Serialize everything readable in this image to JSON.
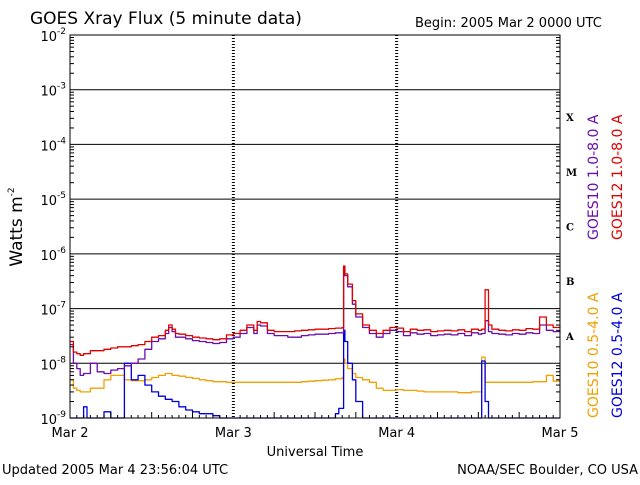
{
  "chart_data": {
    "type": "line",
    "title": "GOES Xray Flux (5 minute data)",
    "begin_label": "Begin:  2005 Mar 2 0000 UTC",
    "xlabel": "Universal Time",
    "ylabel": "Watts m",
    "ylabel_sup": "-2",
    "y_scale": "log",
    "ylim": [
      1e-09,
      0.01
    ],
    "y_ticks": [
      {
        "base": "10",
        "exp": "-2"
      },
      {
        "base": "10",
        "exp": "-3"
      },
      {
        "base": "10",
        "exp": "-4"
      },
      {
        "base": "10",
        "exp": "-5"
      },
      {
        "base": "10",
        "exp": "-6"
      },
      {
        "base": "10",
        "exp": "-7"
      },
      {
        "base": "10",
        "exp": "-8"
      },
      {
        "base": "10",
        "exp": "-9"
      }
    ],
    "x_ticks": [
      "Mar 2",
      "Mar 3",
      "Mar 4",
      "Mar 5"
    ],
    "xlim": [
      0,
      72
    ],
    "x_unit": "hours since 2005 Mar 2 0000 UTC",
    "flare_classes": [
      {
        "label": "X",
        "flux": 0.0001
      },
      {
        "label": "M",
        "flux": 1e-05
      },
      {
        "label": "C",
        "flux": 1e-06
      },
      {
        "label": "B",
        "flux": 1e-07
      },
      {
        "label": "A",
        "flux": 1e-08
      }
    ],
    "grid": true,
    "series": [
      {
        "name": "GOES10 1.0-8.0 A",
        "color": "#6a0dad",
        "x": [
          0,
          0.5,
          1,
          1.5,
          2,
          3,
          4,
          5,
          6,
          7,
          8,
          9,
          10,
          11,
          12,
          13,
          14,
          14.5,
          15,
          15.5,
          16,
          17,
          18,
          19,
          20,
          21,
          22,
          23,
          24,
          25,
          26,
          27,
          27.5,
          28,
          29,
          30,
          31,
          32,
          33,
          34,
          35,
          36,
          37,
          38,
          39,
          40,
          40.2,
          40.4,
          40.8,
          41.5,
          42,
          43,
          44,
          45,
          46,
          47,
          48,
          49,
          50,
          51,
          52,
          53,
          54,
          55,
          56,
          57,
          58,
          59,
          60,
          60.5,
          61,
          61.5,
          62,
          63,
          64,
          65,
          66,
          67,
          68,
          69,
          70,
          71,
          72
        ],
        "values": [
          2.2e-08,
          1e-08,
          8e-09,
          6e-09,
          6.5e-09,
          1e-08,
          7e-09,
          6.5e-09,
          7.5e-09,
          8e-09,
          9e-09,
          1e-08,
          1.2e-08,
          1.8e-08,
          2.5e-08,
          2.8e-08,
          3.5e-08,
          4.5e-08,
          3.8e-08,
          3e-08,
          3e-08,
          2.8e-08,
          2.6e-08,
          2.5e-08,
          2.4e-08,
          2.3e-08,
          2.4e-08,
          2.8e-08,
          3e-08,
          3.5e-08,
          4.5e-08,
          3.5e-08,
          5e-08,
          4.8e-08,
          3.5e-08,
          3.2e-08,
          3.2e-08,
          3e-08,
          3e-08,
          3.2e-08,
          3.3e-08,
          3.4e-08,
          3.4e-08,
          3.5e-08,
          3.6e-08,
          3.6e-08,
          5.5e-07,
          4e-07,
          2.5e-07,
          1.2e-07,
          7e-08,
          4.5e-08,
          3.5e-08,
          3e-08,
          3.5e-08,
          4e-08,
          3.8e-08,
          3.2e-08,
          3.6e-08,
          3.4e-08,
          3.5e-08,
          3.2e-08,
          3.3e-08,
          3.4e-08,
          3.3e-08,
          3.5e-08,
          3.2e-08,
          3.6e-08,
          3.4e-08,
          3.5e-08,
          6e-08,
          3.8e-08,
          3.5e-08,
          3.4e-08,
          3.3e-08,
          3.5e-08,
          3.4e-08,
          3.6e-08,
          3.5e-08,
          5e-08,
          4e-08,
          3.8e-08,
          3.9e-08
        ]
      },
      {
        "name": "GOES12 1.0-8.0 A",
        "color": "#e00000",
        "x": [
          0,
          0.5,
          1,
          1.5,
          2,
          3,
          4,
          5,
          6,
          7,
          8,
          9,
          10,
          11,
          12,
          13,
          14,
          14.5,
          15,
          15.5,
          16,
          17,
          18,
          19,
          20,
          21,
          22,
          23,
          24,
          25,
          26,
          27,
          27.5,
          28,
          29,
          30,
          31,
          32,
          33,
          34,
          35,
          36,
          37,
          38,
          39,
          40,
          40.2,
          40.4,
          40.8,
          41.5,
          42,
          43,
          44,
          45,
          46,
          47,
          48,
          49,
          50,
          51,
          52,
          53,
          54,
          55,
          56,
          57,
          58,
          59,
          60,
          60.5,
          61,
          61.5,
          62,
          63,
          64,
          65,
          66,
          67,
          68,
          69,
          70,
          71,
          72
        ],
        "values": [
          2.5e-08,
          1.6e-08,
          1.5e-08,
          1.4e-08,
          1.5e-08,
          1.7e-08,
          1.7e-08,
          1.8e-08,
          1.9e-08,
          2e-08,
          2e-08,
          2.1e-08,
          2.2e-08,
          2.5e-08,
          3e-08,
          3.2e-08,
          4e-08,
          5e-08,
          4.2e-08,
          3.5e-08,
          3.4e-08,
          3.2e-08,
          3e-08,
          2.9e-08,
          2.8e-08,
          2.7e-08,
          2.8e-08,
          3.3e-08,
          3.5e-08,
          4e-08,
          5e-08,
          4e-08,
          5.8e-08,
          5.5e-08,
          4e-08,
          3.8e-08,
          3.8e-08,
          3.8e-08,
          3.9e-08,
          4e-08,
          4.1e-08,
          4.2e-08,
          4.2e-08,
          4.3e-08,
          4.4e-08,
          4.5e-08,
          6e-07,
          4.3e-07,
          2.8e-07,
          1.4e-07,
          8e-08,
          5e-08,
          4e-08,
          3.5e-08,
          4e-08,
          4.5e-08,
          4.4e-08,
          3.8e-08,
          4.2e-08,
          4e-08,
          4.1e-08,
          3.8e-08,
          3.9e-08,
          4e-08,
          3.9e-08,
          4.1e-08,
          3.8e-08,
          4.2e-08,
          4e-08,
          4.2e-08,
          2.2e-07,
          5e-08,
          4.2e-08,
          4e-08,
          3.9e-08,
          4.1e-08,
          4e-08,
          4.3e-08,
          4.2e-08,
          7e-08,
          5e-08,
          4.5e-08,
          4.6e-08
        ]
      },
      {
        "name": "GOES10 0.5-4.0 A",
        "color": "#f0a000",
        "x": [
          0,
          0.5,
          1,
          1.5,
          2,
          3,
          4,
          5,
          6,
          7,
          8,
          9,
          10,
          11,
          12,
          13,
          14,
          15,
          16,
          17,
          18,
          19,
          20,
          21,
          22,
          23,
          24,
          25,
          26,
          27,
          28,
          29,
          30,
          31,
          32,
          33,
          34,
          35,
          36,
          37,
          38,
          39,
          40,
          40.2,
          40.4,
          40.8,
          41.5,
          42,
          43,
          44,
          45,
          46,
          47,
          48,
          49,
          50,
          51,
          52,
          53,
          54,
          55,
          56,
          57,
          58,
          59,
          60,
          60.5,
          61,
          62,
          63,
          64,
          65,
          66,
          67,
          68,
          69,
          70,
          71,
          72
        ],
        "values": [
          5e-09,
          3.5e-09,
          3.2e-09,
          3e-09,
          3e-09,
          3.5e-09,
          3.5e-09,
          5e-09,
          6e-09,
          6e-09,
          5e-09,
          4.8e-09,
          4.8e-09,
          5e-09,
          5.5e-09,
          6e-09,
          6.5e-09,
          6e-09,
          5.8e-09,
          5.5e-09,
          5.3e-09,
          5e-09,
          4.8e-09,
          4.6e-09,
          4.6e-09,
          4.5e-09,
          4.5e-09,
          4.5e-09,
          4.5e-09,
          4.5e-09,
          4.5e-09,
          4.5e-09,
          4.5e-09,
          4.5e-09,
          4.5e-09,
          4.5e-09,
          4.6e-09,
          4.7e-09,
          4.8e-09,
          4.9e-09,
          5e-09,
          5.2e-09,
          5.5e-09,
          1.2e-08,
          1e-08,
          8e-09,
          6.5e-09,
          5.5e-09,
          5e-09,
          4.5e-09,
          3.5e-09,
          3.2e-09,
          3.2e-09,
          3.3e-09,
          3.2e-09,
          3.2e-09,
          3.1e-09,
          3e-09,
          3e-09,
          3e-09,
          3e-09,
          3e-09,
          2.9e-09,
          2.9e-09,
          3e-09,
          3e-09,
          1.3e-08,
          4.5e-09,
          4.5e-09,
          4.5e-09,
          4.5e-09,
          4.5e-09,
          4.5e-09,
          4.5e-09,
          4.6e-09,
          4.6e-09,
          6e-09,
          4.7e-09,
          4.8e-09
        ]
      },
      {
        "name": "GOES12 0.5-4.0 A",
        "color": "#0000dd",
        "x": [
          0,
          0.5,
          1,
          1.5,
          2,
          2.5,
          3,
          3.5,
          4,
          5,
          6,
          7,
          7.5,
          8,
          9,
          10,
          11,
          12,
          13,
          14,
          15,
          16,
          17,
          18,
          19,
          20,
          21,
          22,
          23,
          24,
          25,
          26,
          27,
          28,
          29,
          30,
          31,
          32,
          33,
          34,
          35,
          36,
          37,
          38,
          39,
          39.5,
          40,
          40.2,
          40.4,
          40.8,
          41.5,
          42,
          43,
          44,
          45,
          46,
          47,
          48,
          49,
          50,
          51,
          52,
          53,
          54,
          55,
          56,
          57,
          58,
          59,
          59.5,
          60,
          60.5,
          61,
          61.5,
          62,
          63,
          64,
          65,
          66,
          67,
          68,
          69,
          70,
          71,
          72
        ],
        "values": [
          1e-09,
          1e-09,
          1e-09,
          1e-09,
          1.6e-09,
          1e-09,
          1e-09,
          1e-09,
          1e-09,
          1.3e-09,
          1e-09,
          1e-09,
          1e-09,
          1e-08,
          5e-09,
          6e-09,
          4e-09,
          3e-09,
          2.5e-09,
          2.2e-09,
          2e-09,
          1.6e-09,
          1.4e-09,
          1.3e-09,
          1.2e-09,
          1.2e-09,
          1.1e-09,
          1e-09,
          1e-09,
          1e-09,
          1e-09,
          1e-09,
          1e-09,
          1e-09,
          1e-09,
          1e-09,
          1e-09,
          1e-09,
          1e-09,
          1e-09,
          1e-09,
          1e-09,
          1e-09,
          1e-09,
          1.2e-09,
          1.5e-09,
          1.5e-09,
          4e-08,
          2.5e-08,
          1e-08,
          5e-09,
          2e-09,
          1e-09,
          1e-09,
          1e-09,
          1e-09,
          1e-09,
          1e-09,
          1e-09,
          1e-09,
          1e-09,
          1e-09,
          1e-09,
          1e-09,
          1e-09,
          1e-09,
          1e-09,
          1e-09,
          1e-09,
          1e-09,
          1e-09,
          1.1e-08,
          2e-09,
          1e-09,
          1e-09,
          1e-09,
          1e-09,
          1e-09,
          1e-09,
          1e-09,
          1e-09,
          1e-09,
          1e-09,
          1e-09,
          1e-09
        ]
      }
    ]
  },
  "footer": {
    "updated": "Updated 2005 Mar  4 23:56:04 UTC",
    "source": "NOAA/SEC Boulder, CO USA"
  }
}
